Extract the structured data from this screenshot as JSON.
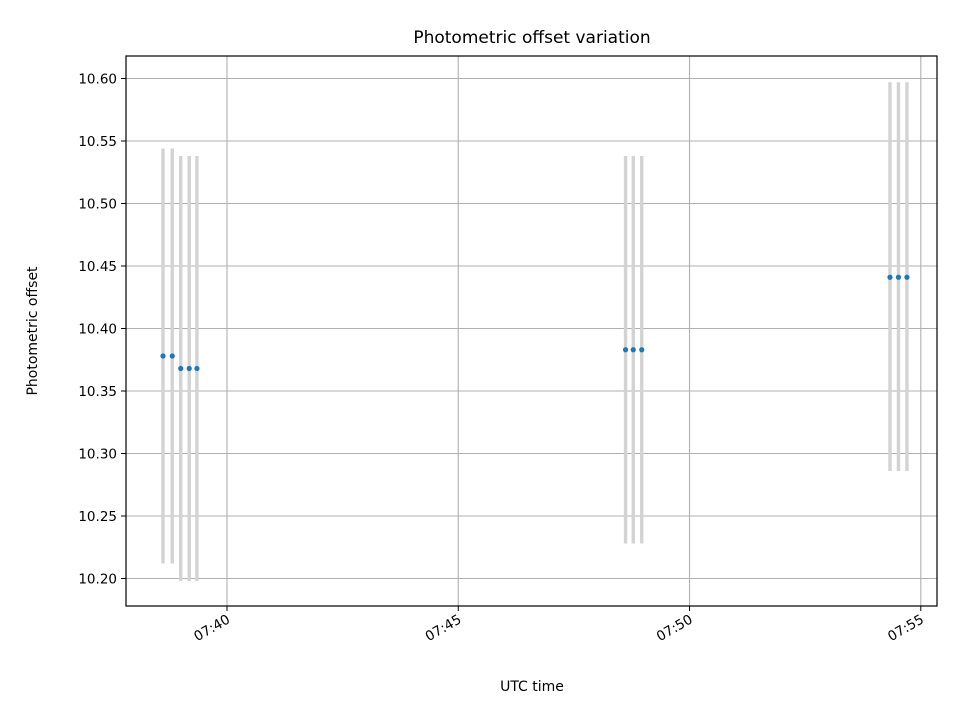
{
  "chart_data": {
    "type": "scatter",
    "title": "Photometric offset variation",
    "xlabel": "UTC time",
    "ylabel": "Photometric offset",
    "xlim": [
      "07:37:49",
      "07:55:21"
    ],
    "ylim": [
      10.178,
      10.618
    ],
    "xticks": [
      "07:40",
      "07:45",
      "07:50",
      "07:55"
    ],
    "yticks": [
      "10.20",
      "10.25",
      "10.30",
      "10.35",
      "10.40",
      "10.45",
      "10.50",
      "10.55",
      "10.60"
    ],
    "grid": true,
    "points": [
      {
        "x": "07:38:37",
        "y": 10.378,
        "ylow": 10.212,
        "yhigh": 10.544
      },
      {
        "x": "07:38:49",
        "y": 10.378,
        "ylow": 10.212,
        "yhigh": 10.544
      },
      {
        "x": "07:39:00",
        "y": 10.368,
        "ylow": 10.198,
        "yhigh": 10.538
      },
      {
        "x": "07:39:11",
        "y": 10.368,
        "ylow": 10.198,
        "yhigh": 10.538
      },
      {
        "x": "07:39:21",
        "y": 10.368,
        "ylow": 10.198,
        "yhigh": 10.538
      },
      {
        "x": "07:48:37",
        "y": 10.383,
        "ylow": 10.228,
        "yhigh": 10.538
      },
      {
        "x": "07:48:47",
        "y": 10.383,
        "ylow": 10.228,
        "yhigh": 10.538
      },
      {
        "x": "07:48:58",
        "y": 10.383,
        "ylow": 10.228,
        "yhigh": 10.538
      },
      {
        "x": "07:54:20",
        "y": 10.441,
        "ylow": 10.286,
        "yhigh": 10.597
      },
      {
        "x": "07:54:31",
        "y": 10.441,
        "ylow": 10.286,
        "yhigh": 10.597
      },
      {
        "x": "07:54:42",
        "y": 10.441,
        "ylow": 10.286,
        "yhigh": 10.597
      }
    ],
    "colors": {
      "points": "#1f77b4",
      "errorbars": "#d3d3d3",
      "grid": "#b0b0b0"
    }
  }
}
